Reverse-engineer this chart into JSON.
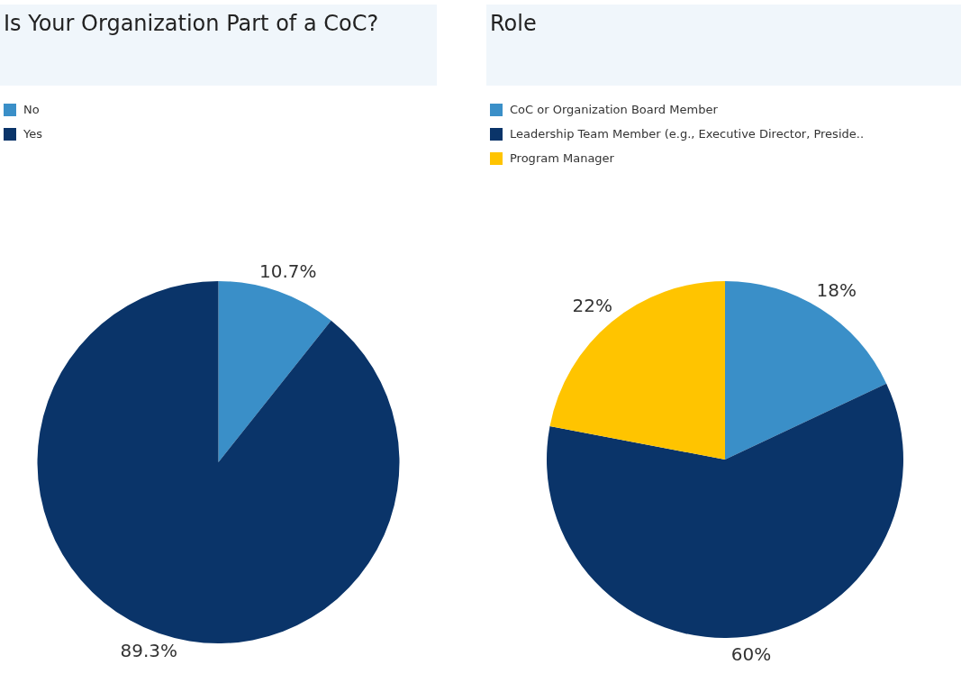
{
  "chart_data": [
    {
      "type": "pie",
      "title": "Is Your Organization Part of a CoC?",
      "categories": [
        "No",
        "Yes"
      ],
      "values": [
        10.7,
        89.3
      ],
      "colors": [
        "#3a8fc8",
        "#0a3469"
      ],
      "value_labels": [
        "10.7%",
        "89.3%"
      ],
      "legend": "top left"
    },
    {
      "type": "pie",
      "title": "Role",
      "categories": [
        "CoC or Organization Board Member",
        "Leadership Team Member (e.g., Executive Director, Preside..",
        "Program Manager"
      ],
      "values": [
        18,
        60,
        22
      ],
      "colors": [
        "#3a8fc8",
        "#0a3469",
        "#ffc400"
      ],
      "value_labels": [
        "18%",
        "60%",
        "22%"
      ],
      "legend": "top left"
    }
  ]
}
